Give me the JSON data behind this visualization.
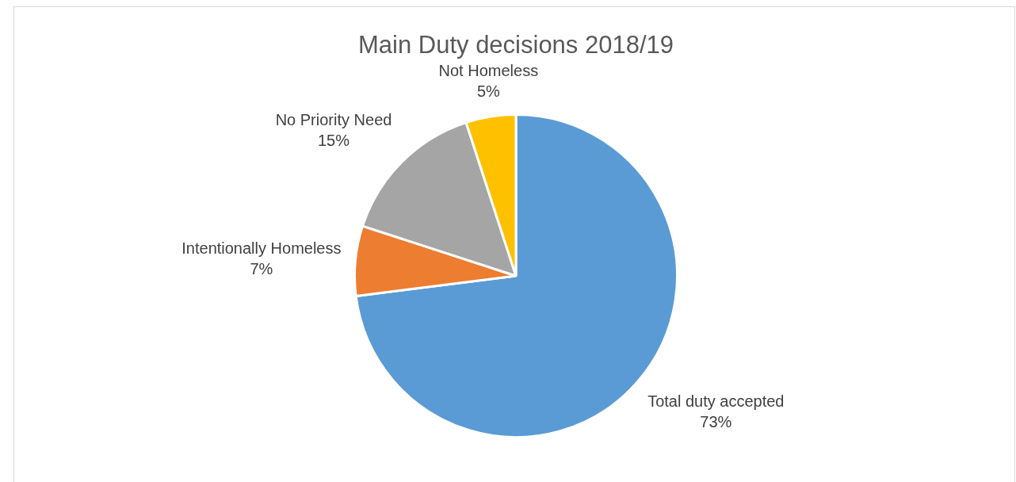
{
  "chart_data": {
    "type": "pie",
    "title": "Main Duty decisions 2018/19",
    "categories": [
      "Total duty accepted",
      "Intentionally Homeless",
      "No Priority Need",
      "Not Homeless"
    ],
    "values": [
      73,
      7,
      15,
      5
    ],
    "colors": [
      "#5b9bd5",
      "#ed7d31",
      "#a5a5a5",
      "#ffc000"
    ],
    "value_labels": [
      "73%",
      "7%",
      "15%",
      "5%"
    ],
    "legend": false
  }
}
